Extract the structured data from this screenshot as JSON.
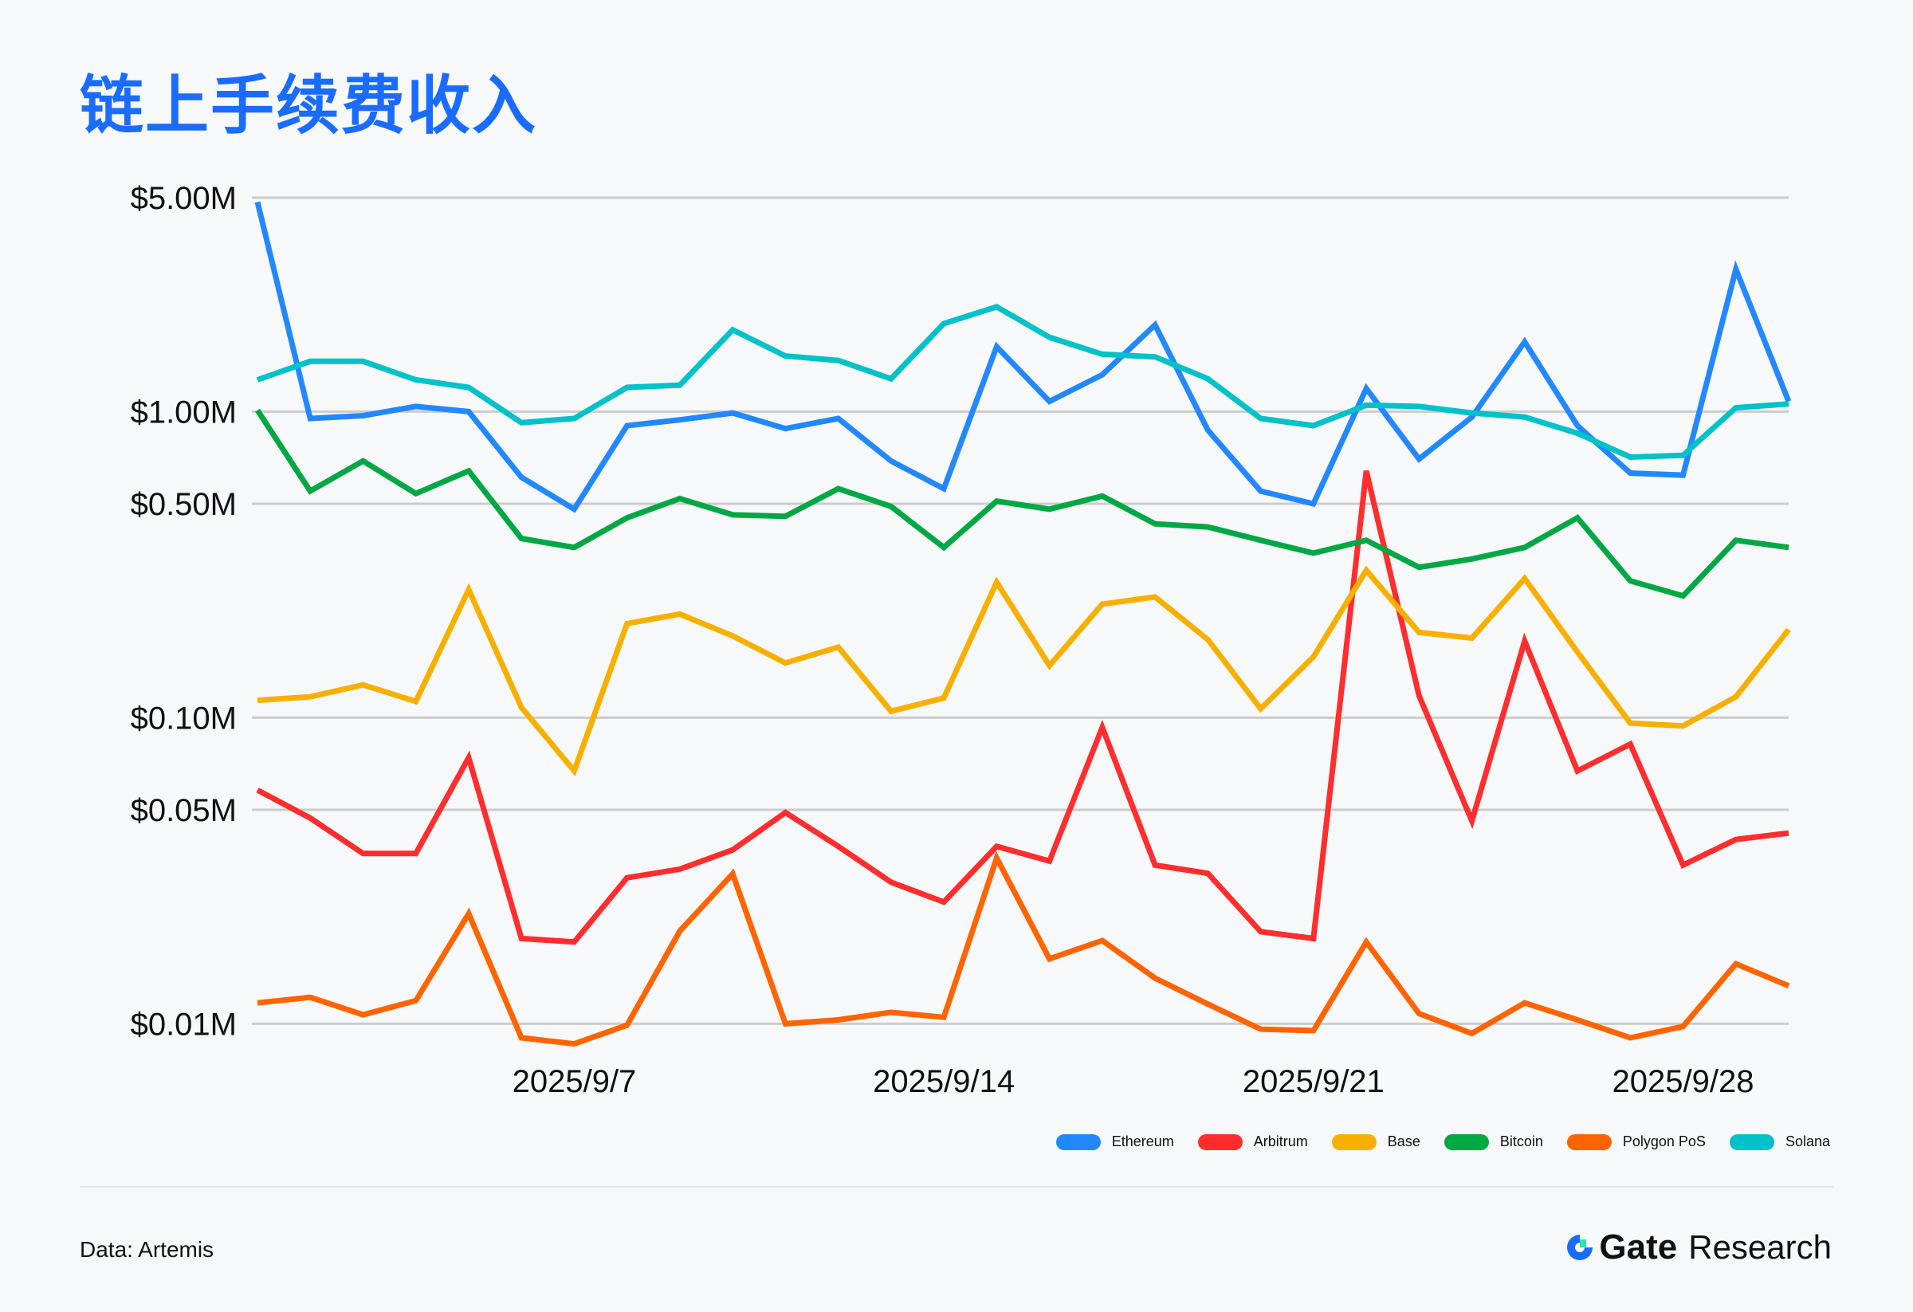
{
  "title": "链上手续费收入",
  "source": "Data: Artemis",
  "logo": {
    "brand": "Gate",
    "sub": "Research"
  },
  "chart_data": {
    "type": "line",
    "title": "链上手续费收入",
    "xlabel": "",
    "ylabel": "",
    "yscale": "log",
    "ylim": [
      0.0085,
      5
    ],
    "y_ticks": [
      5,
      1,
      0.5,
      0.1,
      0.05,
      0.01
    ],
    "y_tick_labels": [
      "$5.00M",
      "$1.00M",
      "$0.50M",
      "$0.10M",
      "$0.05M",
      "$0.01M"
    ],
    "x": [
      "2025/9/1",
      "2025/9/2",
      "2025/9/3",
      "2025/9/4",
      "2025/9/5",
      "2025/9/6",
      "2025/9/7",
      "2025/9/8",
      "2025/9/9",
      "2025/9/10",
      "2025/9/11",
      "2025/9/12",
      "2025/9/13",
      "2025/9/14",
      "2025/9/15",
      "2025/9/16",
      "2025/9/17",
      "2025/9/18",
      "2025/9/19",
      "2025/9/20",
      "2025/9/21",
      "2025/9/22",
      "2025/9/23",
      "2025/9/24",
      "2025/9/25",
      "2025/9/26",
      "2025/9/27",
      "2025/9/28",
      "2025/9/29",
      "2025/9/30"
    ],
    "x_tick_labels": [
      {
        "index": 6,
        "label": "2025/9/7"
      },
      {
        "index": 13,
        "label": "2025/9/14"
      },
      {
        "index": 20,
        "label": "2025/9/21"
      },
      {
        "index": 27,
        "label": "2025/9/28"
      }
    ],
    "grid": true,
    "legend_position": "bottom-right",
    "unit": "USD millions",
    "series": [
      {
        "name": "Ethereum",
        "color": "#2288ff",
        "values": [
          4.84,
          0.95,
          0.97,
          1.04,
          1.0,
          0.61,
          0.48,
          0.9,
          0.94,
          0.99,
          0.88,
          0.95,
          0.69,
          0.56,
          1.63,
          1.08,
          1.32,
          1.92,
          0.87,
          0.55,
          0.5,
          1.19,
          0.7,
          0.96,
          1.69,
          0.9,
          0.63,
          0.62,
          2.92,
          1.08
        ]
      },
      {
        "name": "Arbitrum",
        "color": "#ff2d2d",
        "values": [
          0.058,
          0.047,
          0.036,
          0.036,
          0.074,
          0.019,
          0.0185,
          0.03,
          0.032,
          0.037,
          0.049,
          0.038,
          0.029,
          0.025,
          0.038,
          0.034,
          0.093,
          0.033,
          0.031,
          0.02,
          0.019,
          0.64,
          0.118,
          0.046,
          0.178,
          0.067,
          0.082,
          0.033,
          0.04,
          0.042
        ]
      },
      {
        "name": "Base",
        "color": "#f8b000",
        "values": [
          0.114,
          0.117,
          0.128,
          0.113,
          0.262,
          0.108,
          0.067,
          0.203,
          0.218,
          0.185,
          0.151,
          0.17,
          0.105,
          0.116,
          0.277,
          0.148,
          0.235,
          0.248,
          0.18,
          0.107,
          0.158,
          0.303,
          0.19,
          0.182,
          0.285,
          0.164,
          0.096,
          0.094,
          0.117,
          0.194
        ]
      },
      {
        "name": "Bitcoin",
        "color": "#00a844",
        "values": [
          1.01,
          0.55,
          0.69,
          0.54,
          0.64,
          0.385,
          0.36,
          0.45,
          0.52,
          0.46,
          0.455,
          0.56,
          0.49,
          0.36,
          0.51,
          0.48,
          0.53,
          0.43,
          0.42,
          0.38,
          0.345,
          0.38,
          0.31,
          0.33,
          0.36,
          0.45,
          0.28,
          0.25,
          0.38,
          0.36
        ]
      },
      {
        "name": "Polygon PoS",
        "color": "#ff6400",
        "values": [
          0.0117,
          0.0122,
          0.0107,
          0.0119,
          0.0229,
          0.009,
          0.0086,
          0.0099,
          0.0201,
          0.0309,
          0.01,
          0.0103,
          0.0109,
          0.0105,
          0.0348,
          0.0163,
          0.0187,
          0.0141,
          0.0116,
          0.0096,
          0.0095,
          0.0185,
          0.0108,
          0.0093,
          0.0117,
          0.0103,
          0.009,
          0.0098,
          0.0157,
          0.0133
        ]
      },
      {
        "name": "Solana",
        "color": "#00c2c8",
        "values": [
          1.27,
          1.46,
          1.46,
          1.27,
          1.2,
          0.92,
          0.95,
          1.2,
          1.22,
          1.85,
          1.52,
          1.47,
          1.28,
          1.94,
          2.2,
          1.75,
          1.54,
          1.51,
          1.28,
          0.95,
          0.9,
          1.05,
          1.04,
          0.99,
          0.96,
          0.85,
          0.71,
          0.72,
          1.03,
          1.06
        ]
      }
    ]
  }
}
